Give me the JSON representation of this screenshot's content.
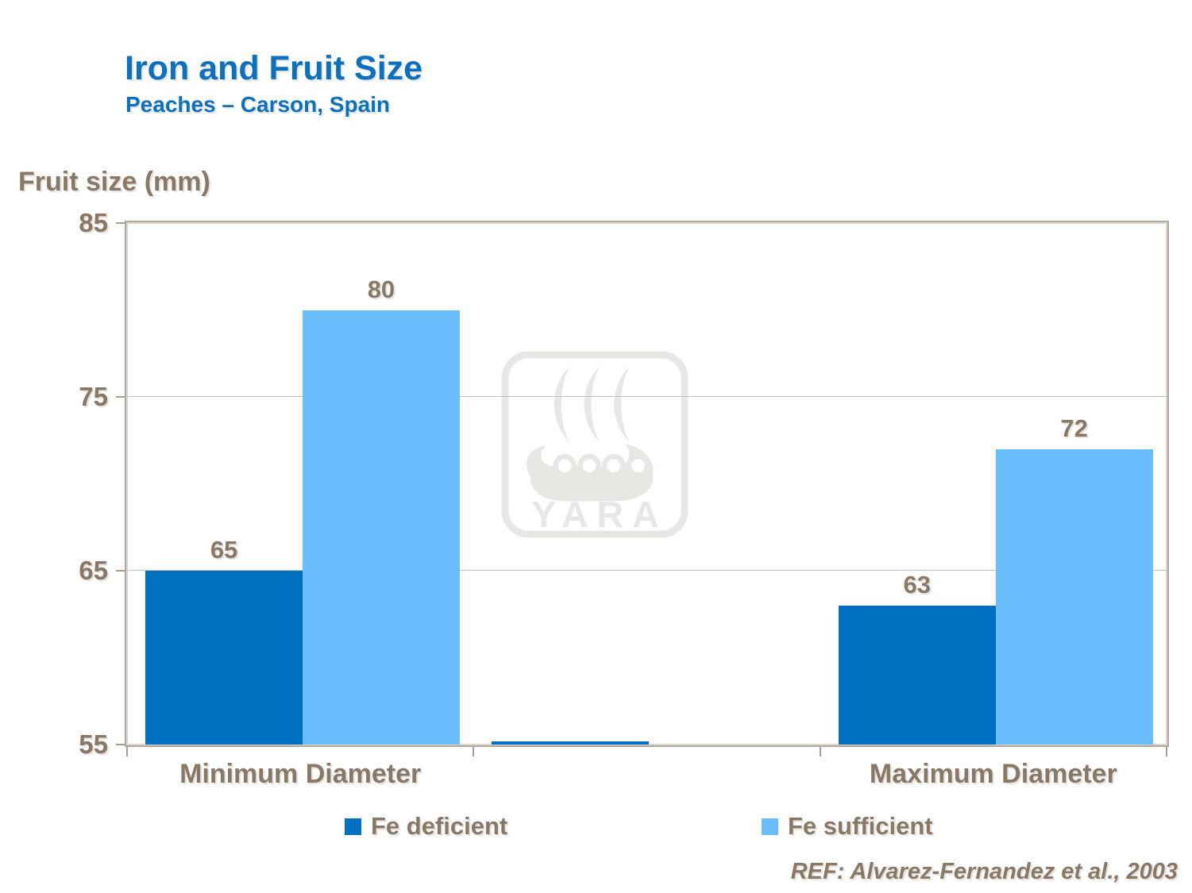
{
  "header": {
    "title": "Iron and Fruit Size",
    "subtitle": "Peaches – Carson, Spain"
  },
  "watermark": {
    "icon": "yara-viking-ship-logo",
    "text": "YARA"
  },
  "footer": {
    "reference": "REF: Alvarez-Fernandez et al., 2003"
  },
  "colors": {
    "title_blue": "#0C70C1",
    "fe_deficient": "#0071C1",
    "fe_sufficient": "#69BDFC",
    "text_brown": "#8A7866",
    "frame": "#B2A79B",
    "frame_highlight": "#DDD6CD",
    "tick": "#A89D91",
    "gridline": "#C9C0B5",
    "watermark_gray": "#E9E7E4"
  },
  "chart_data": {
    "type": "bar",
    "title": "Iron and Fruit Size",
    "subtitle": "Peaches – Carson, Spain",
    "xlabel": "",
    "ylabel": "Fruit size (mm)",
    "ylim": [
      55,
      85
    ],
    "yticks": [
      85,
      75,
      65,
      55
    ],
    "grid": true,
    "legend_position": "bottom",
    "categories": [
      "Minimum Diameter",
      "",
      "Maximum Diameter"
    ],
    "series": [
      {
        "name": "Fe deficient",
        "color": "#0071C1",
        "values": [
          65,
          55.2,
          63
        ],
        "labels": [
          "65",
          "",
          "63"
        ]
      },
      {
        "name": "Fe sufficient",
        "color": "#69BDFC",
        "values": [
          80,
          null,
          72
        ],
        "labels": [
          "80",
          "",
          "72"
        ]
      }
    ]
  }
}
